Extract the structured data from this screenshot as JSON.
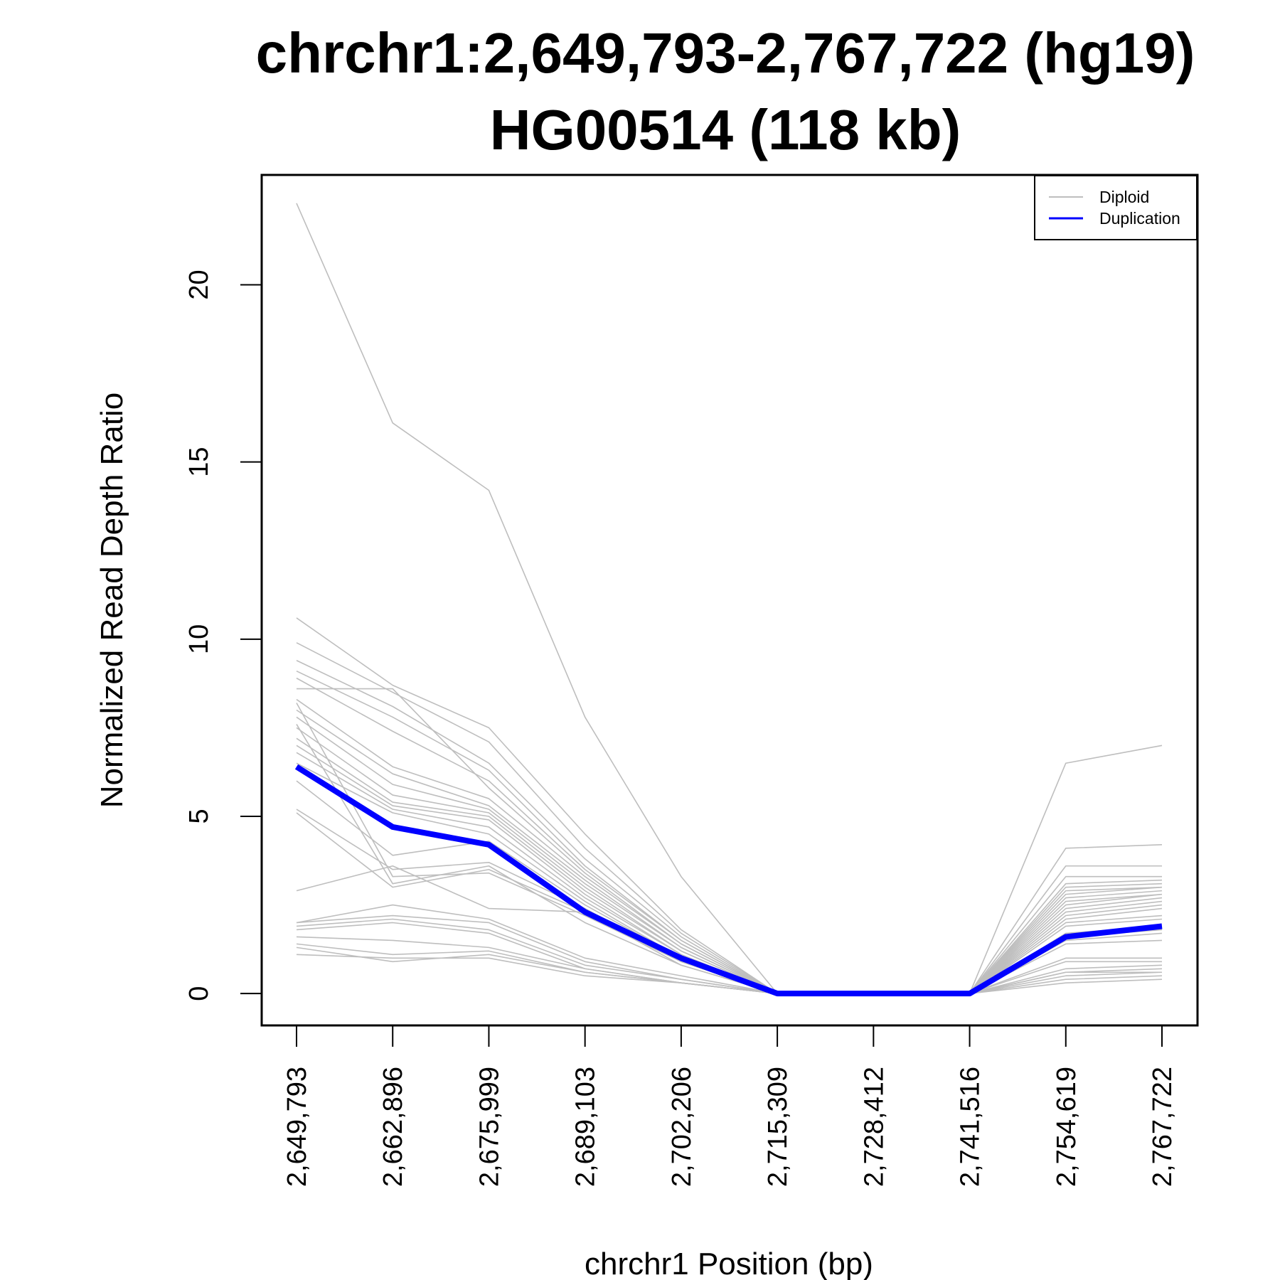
{
  "chart_data": {
    "type": "line",
    "title_line1": "chrchr1:2,649,793-2,767,722 (hg19)",
    "title_line2": "HG00514 (118 kb)",
    "xlabel": "chrchr1 Position (bp)",
    "ylabel": "Normalized Read Depth Ratio",
    "x_ticks": [
      "2,649,793",
      "2,662,896",
      "2,675,999",
      "2,689,103",
      "2,702,206",
      "2,715,309",
      "2,728,412",
      "2,741,516",
      "2,754,619",
      "2,767,722"
    ],
    "y_ticks": [
      0,
      5,
      10,
      15,
      20
    ],
    "ylim": [
      -0.9,
      23.1
    ],
    "legend": {
      "position": "top-right",
      "entries": [
        {
          "label": "Diploid",
          "color": "#bebebe"
        },
        {
          "label": "Duplication",
          "color": "#0000ff"
        }
      ]
    },
    "series": [
      {
        "group": "Diploid",
        "values": [
          22.3,
          16.1,
          14.2,
          7.8,
          3.3,
          0,
          0,
          0,
          6.5,
          7.0
        ]
      },
      {
        "group": "Diploid",
        "values": [
          10.6,
          8.7,
          7.5,
          4.5,
          1.8,
          0,
          0,
          0,
          4.1,
          4.2
        ]
      },
      {
        "group": "Diploid",
        "values": [
          9.9,
          8.5,
          7.1,
          4.1,
          1.7,
          0,
          0,
          0,
          3.6,
          3.6
        ]
      },
      {
        "group": "Diploid",
        "values": [
          9.4,
          8.1,
          6.5,
          3.8,
          1.6,
          0,
          0,
          0,
          3.3,
          3.3
        ]
      },
      {
        "group": "Diploid",
        "values": [
          9.1,
          7.8,
          6.3,
          3.6,
          1.5,
          0,
          0,
          0,
          3.1,
          3.2
        ]
      },
      {
        "group": "Diploid",
        "values": [
          8.9,
          7.4,
          6.0,
          3.5,
          1.5,
          0,
          0,
          0,
          3.0,
          3.1
        ]
      },
      {
        "group": "Diploid",
        "values": [
          8.6,
          8.6,
          5.8,
          3.4,
          1.4,
          0,
          0,
          0,
          2.9,
          3.0
        ]
      },
      {
        "group": "Diploid",
        "values": [
          8.3,
          6.4,
          5.5,
          3.3,
          1.4,
          0,
          0,
          0,
          2.8,
          3.0
        ]
      },
      {
        "group": "Diploid",
        "values": [
          8.0,
          6.2,
          5.3,
          3.2,
          1.3,
          0,
          0,
          0,
          2.7,
          2.9
        ]
      },
      {
        "group": "Diploid",
        "values": [
          7.8,
          5.9,
          5.2,
          3.1,
          1.3,
          0,
          0,
          0,
          2.6,
          2.8
        ]
      },
      {
        "group": "Diploid",
        "values": [
          7.5,
          5.6,
          5.1,
          3.0,
          1.2,
          0,
          0,
          0,
          2.5,
          2.8
        ]
      },
      {
        "group": "Diploid",
        "values": [
          7.2,
          5.4,
          5.0,
          2.9,
          1.2,
          0,
          0,
          0,
          2.4,
          2.7
        ]
      },
      {
        "group": "Diploid",
        "values": [
          7.0,
          5.3,
          4.9,
          2.8,
          1.1,
          0,
          0,
          0,
          2.3,
          2.6
        ]
      },
      {
        "group": "Diploid",
        "values": [
          6.8,
          5.2,
          4.7,
          2.7,
          1.1,
          0,
          0,
          0,
          2.2,
          2.5
        ]
      },
      {
        "group": "Diploid",
        "values": [
          6.5,
          5.1,
          4.5,
          2.6,
          1.0,
          0,
          0,
          0,
          2.1,
          2.4
        ]
      },
      {
        "group": "Diploid",
        "values": [
          6.0,
          3.9,
          4.3,
          2.5,
          1.0,
          0,
          0,
          0,
          2.0,
          2.2
        ]
      },
      {
        "group": "Diploid",
        "values": [
          5.2,
          3.5,
          3.7,
          2.4,
          0.9,
          0,
          0,
          0,
          1.9,
          2.1
        ]
      },
      {
        "group": "Diploid",
        "values": [
          5.1,
          3.0,
          3.5,
          2.3,
          0.9,
          0,
          0,
          0,
          1.7,
          1.9
        ]
      },
      {
        "group": "Diploid",
        "values": [
          8.2,
          3.3,
          3.4,
          2.2,
          0.9,
          0,
          0,
          0,
          1.6,
          1.8
        ]
      },
      {
        "group": "Diploid",
        "values": [
          7.6,
          3.1,
          3.6,
          2.0,
          0.8,
          0,
          0,
          0,
          1.5,
          1.7
        ]
      },
      {
        "group": "Diploid",
        "values": [
          2.9,
          3.6,
          2.4,
          2.3,
          0.8,
          0,
          0,
          0,
          1.4,
          1.5
        ]
      },
      {
        "group": "Diploid",
        "values": [
          2.0,
          2.5,
          2.1,
          1.0,
          0.5,
          0,
          0,
          0,
          1.0,
          1.0
        ]
      },
      {
        "group": "Diploid",
        "values": [
          2.0,
          2.2,
          2.0,
          0.9,
          0.4,
          0,
          0,
          0,
          0.9,
          0.9
        ]
      },
      {
        "group": "Diploid",
        "values": [
          1.9,
          2.1,
          1.8,
          0.8,
          0.4,
          0,
          0,
          0,
          0.7,
          0.8
        ]
      },
      {
        "group": "Diploid",
        "values": [
          1.8,
          2.0,
          1.7,
          0.7,
          0.3,
          0,
          0,
          0,
          0.6,
          0.7
        ]
      },
      {
        "group": "Diploid",
        "values": [
          1.6,
          1.5,
          1.3,
          0.7,
          0.3,
          0,
          0,
          0,
          0.6,
          0.6
        ]
      },
      {
        "group": "Diploid",
        "values": [
          1.4,
          1.1,
          1.2,
          0.6,
          0.3,
          0,
          0,
          0,
          0.5,
          0.6
        ]
      },
      {
        "group": "Diploid",
        "values": [
          1.3,
          0.9,
          1.1,
          0.6,
          0.3,
          0,
          0,
          0,
          0.4,
          0.5
        ]
      },
      {
        "group": "Diploid",
        "values": [
          1.1,
          1.0,
          1.0,
          0.5,
          0.3,
          0,
          0,
          0,
          0.3,
          0.4
        ]
      },
      {
        "group": "Duplication",
        "values": [
          6.4,
          4.7,
          4.2,
          2.3,
          1.0,
          0,
          0,
          0,
          1.6,
          1.9
        ]
      }
    ]
  }
}
